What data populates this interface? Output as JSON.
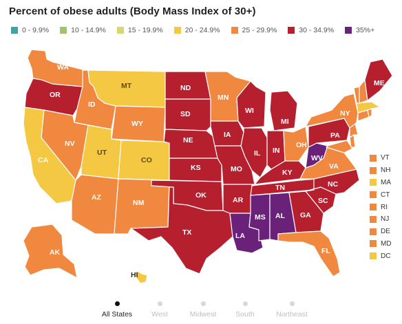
{
  "title": "Percent of obese adults (Body Mass Index of 30+)",
  "colors": {
    "c0": "#3fa3a3",
    "c1": "#9fc46d",
    "c2": "#d8d873",
    "c3": "#f4c842",
    "c4": "#f0883f",
    "c5": "#b61f2e",
    "c6": "#6a2179"
  },
  "legend": [
    {
      "label": "0 - 9.9%",
      "color": "#3fa3a3"
    },
    {
      "label": "10 - 14.9%",
      "color": "#9fc46d"
    },
    {
      "label": "15 - 19.9%",
      "color": "#d8d873"
    },
    {
      "label": "20 - 24.9%",
      "color": "#f4c842"
    },
    {
      "label": "25 - 29.9%",
      "color": "#f0883f"
    },
    {
      "label": "30 - 34.9%",
      "color": "#b61f2e"
    },
    {
      "label": "35%+",
      "color": "#6a2179"
    }
  ],
  "states": {
    "WA": "WA",
    "OR": "OR",
    "ID": "ID",
    "MT": "MT",
    "WY": "WY",
    "NV": "NV",
    "CA": "CA",
    "UT": "UT",
    "CO": "CO",
    "AZ": "AZ",
    "NM": "NM",
    "ND": "ND",
    "SD": "SD",
    "NE": "NE",
    "KS": "KS",
    "OK": "OK",
    "TX": "TX",
    "MN": "MN",
    "IA": "IA",
    "MO": "MO",
    "AR": "AR",
    "LA": "LA",
    "WI": "WI",
    "IL": "IL",
    "MI": "MI",
    "IN": "IN",
    "OH": "OH",
    "KY": "KY",
    "TN": "TN",
    "MS": "MS",
    "AL": "AL",
    "GA": "GA",
    "FL": "FL",
    "SC": "SC",
    "NC": "NC",
    "VA": "VA",
    "WV": "WV",
    "PA": "PA",
    "NY": "NY",
    "ME": "ME",
    "AK": "AK",
    "HI": "HI"
  },
  "small_states": [
    {
      "label": "VT",
      "color": "#f0883f"
    },
    {
      "label": "NH",
      "color": "#f0883f"
    },
    {
      "label": "MA",
      "color": "#f4c842"
    },
    {
      "label": "CT",
      "color": "#f0883f"
    },
    {
      "label": "RI",
      "color": "#f0883f"
    },
    {
      "label": "NJ",
      "color": "#f0883f"
    },
    {
      "label": "DE",
      "color": "#f0883f"
    },
    {
      "label": "MD",
      "color": "#f0883f"
    },
    {
      "label": "DC",
      "color": "#f4c842"
    }
  ],
  "nav": [
    {
      "label": "All States",
      "active": true
    },
    {
      "label": "West",
      "active": false
    },
    {
      "label": "Midwest",
      "active": false
    },
    {
      "label": "South",
      "active": false
    },
    {
      "label": "Northeast",
      "active": false
    }
  ]
}
